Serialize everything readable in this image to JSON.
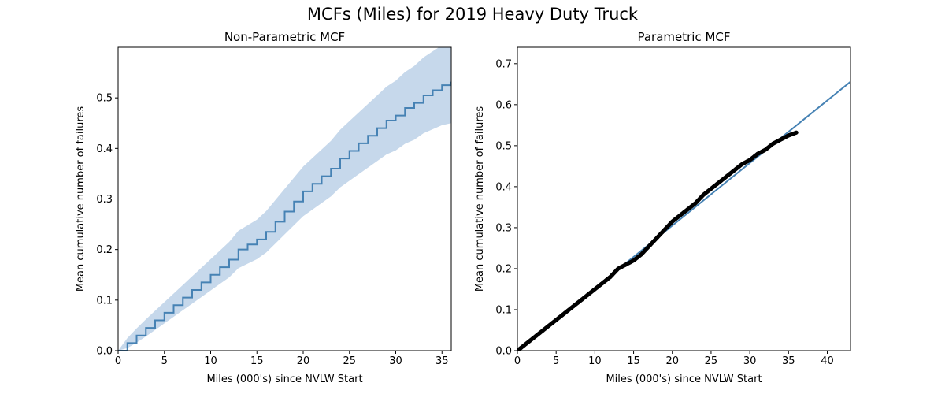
{
  "figure": {
    "title": "MCFs (Miles) for 2019 Heavy Duty Truck"
  },
  "chart_data": [
    {
      "type": "line",
      "title": "Non-Parametric MCF",
      "xlabel": "Miles (000's) since NVLW Start",
      "ylabel": "Mean cumulative number of failures",
      "xlim": [
        0,
        36
      ],
      "ylim": [
        0,
        0.6
      ],
      "xticks": [
        "0",
        "5",
        "10",
        "15",
        "20",
        "25",
        "30",
        "35"
      ],
      "yticks": [
        "0.0",
        "0.1",
        "0.2",
        "0.3",
        "0.4",
        "0.5"
      ],
      "grid": false,
      "colors": {
        "line": "#4682b4",
        "band": "#c6d8eb"
      },
      "series": [
        {
          "x": [
            0,
            1,
            2,
            3,
            4,
            5,
            6,
            7,
            8,
            9,
            10,
            11,
            12,
            13,
            14,
            15,
            16,
            17,
            18,
            19,
            20,
            21,
            22,
            23,
            24,
            25,
            26,
            27,
            28,
            29,
            30,
            31,
            32,
            33,
            34,
            35,
            36
          ],
          "y": [
            0.0,
            0.015,
            0.03,
            0.045,
            0.06,
            0.075,
            0.09,
            0.105,
            0.12,
            0.135,
            0.15,
            0.165,
            0.18,
            0.2,
            0.21,
            0.22,
            0.235,
            0.255,
            0.275,
            0.295,
            0.315,
            0.33,
            0.345,
            0.36,
            0.38,
            0.395,
            0.41,
            0.425,
            0.44,
            0.455,
            0.465,
            0.48,
            0.49,
            0.505,
            0.515,
            0.525,
            0.532
          ],
          "lower": [
            0.0,
            0.005,
            0.016,
            0.028,
            0.041,
            0.054,
            0.067,
            0.08,
            0.093,
            0.106,
            0.119,
            0.132,
            0.145,
            0.163,
            0.172,
            0.181,
            0.194,
            0.212,
            0.23,
            0.248,
            0.266,
            0.279,
            0.292,
            0.305,
            0.323,
            0.336,
            0.349,
            0.362,
            0.375,
            0.388,
            0.396,
            0.409,
            0.417,
            0.43,
            0.438,
            0.446,
            0.45
          ],
          "upper": [
            0.0,
            0.025,
            0.044,
            0.062,
            0.079,
            0.096,
            0.113,
            0.13,
            0.147,
            0.164,
            0.181,
            0.198,
            0.215,
            0.237,
            0.248,
            0.259,
            0.276,
            0.298,
            0.32,
            0.342,
            0.364,
            0.381,
            0.398,
            0.415,
            0.437,
            0.454,
            0.471,
            0.488,
            0.505,
            0.522,
            0.534,
            0.551,
            0.563,
            0.58,
            0.592,
            0.604,
            0.61
          ]
        }
      ]
    },
    {
      "type": "scatter",
      "title": "Parametric MCF",
      "xlabel": "Miles (000's) since NVLW Start",
      "ylabel": "Mean cumulative number of failures",
      "xlim": [
        0,
        43
      ],
      "ylim": [
        0,
        0.74
      ],
      "xticks": [
        "0",
        "5",
        "10",
        "15",
        "20",
        "25",
        "30",
        "35",
        "40"
      ],
      "yticks": [
        "0.0",
        "0.1",
        "0.2",
        "0.3",
        "0.4",
        "0.5",
        "0.6",
        "0.7"
      ],
      "grid": false,
      "colors": {
        "fit": "#4682b4",
        "points": "#000000"
      },
      "fit_line": {
        "x": [
          0,
          43
        ],
        "y": [
          0.0,
          0.656
        ]
      },
      "series": [
        {
          "x": [
            0,
            1,
            2,
            3,
            4,
            5,
            6,
            7,
            8,
            9,
            10,
            11,
            12,
            13,
            14,
            15,
            16,
            17,
            18,
            19,
            20,
            21,
            22,
            23,
            24,
            25,
            26,
            27,
            28,
            29,
            30,
            31,
            32,
            33,
            34,
            35,
            36
          ],
          "y": [
            0.0,
            0.015,
            0.03,
            0.045,
            0.06,
            0.075,
            0.09,
            0.105,
            0.12,
            0.135,
            0.15,
            0.165,
            0.18,
            0.2,
            0.21,
            0.22,
            0.235,
            0.255,
            0.275,
            0.295,
            0.315,
            0.33,
            0.345,
            0.36,
            0.38,
            0.395,
            0.41,
            0.425,
            0.44,
            0.455,
            0.465,
            0.48,
            0.49,
            0.505,
            0.515,
            0.525,
            0.532
          ]
        }
      ]
    }
  ]
}
